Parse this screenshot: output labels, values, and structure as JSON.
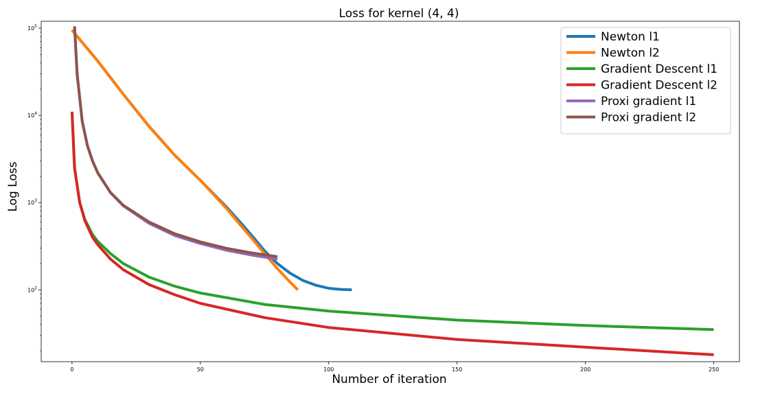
{
  "chart_data": {
    "type": "line",
    "title": "Loss for kernel (4, 4)",
    "xlabel": "Number of iteration",
    "ylabel": "Log Loss",
    "xlim": [
      -12,
      260
    ],
    "ylim": [
      15,
      120000
    ],
    "yscale": "log",
    "x_ticks": [
      0,
      50,
      100,
      150,
      200,
      250
    ],
    "x_tick_labels": [
      "0",
      "50",
      "100",
      "150",
      "200",
      "250"
    ],
    "y_ticks": [
      100,
      1000,
      10000,
      100000
    ],
    "y_tick_labels": [
      {
        "base": "10",
        "exp": "2"
      },
      {
        "base": "10",
        "exp": "3"
      },
      {
        "base": "10",
        "exp": "4"
      },
      {
        "base": "10",
        "exp": "5"
      }
    ],
    "grid": false,
    "legend_position": "top-right",
    "series": [
      {
        "name": "Newton l1",
        "color": "#1f77b4",
        "points": [
          [
            0,
            95000
          ],
          [
            10,
            42000
          ],
          [
            20,
            17500
          ],
          [
            30,
            7500
          ],
          [
            40,
            3500
          ],
          [
            50,
            1800
          ],
          [
            60,
            900
          ],
          [
            65,
            620
          ],
          [
            70,
            420
          ],
          [
            75,
            280
          ],
          [
            80,
            200
          ],
          [
            85,
            155
          ],
          [
            90,
            128
          ],
          [
            95,
            113
          ],
          [
            100,
            104
          ],
          [
            105,
            101
          ],
          [
            109,
            100
          ]
        ]
      },
      {
        "name": "Newton l2",
        "color": "#ff7f0e",
        "points": [
          [
            0,
            95000
          ],
          [
            10,
            42000
          ],
          [
            20,
            17500
          ],
          [
            30,
            7500
          ],
          [
            40,
            3500
          ],
          [
            50,
            1800
          ],
          [
            60,
            870
          ],
          [
            65,
            580
          ],
          [
            70,
            390
          ],
          [
            75,
            260
          ],
          [
            80,
            175
          ],
          [
            85,
            122
          ],
          [
            88,
            100
          ]
        ]
      },
      {
        "name": "Gradient Descent l1",
        "color": "#2ca02c",
        "points": [
          [
            0,
            11000
          ],
          [
            1,
            2500
          ],
          [
            3,
            1000
          ],
          [
            5,
            640
          ],
          [
            8,
            430
          ],
          [
            10,
            360
          ],
          [
            15,
            260
          ],
          [
            20,
            200
          ],
          [
            30,
            140
          ],
          [
            40,
            110
          ],
          [
            50,
            92
          ],
          [
            75,
            68
          ],
          [
            100,
            57
          ],
          [
            150,
            45
          ],
          [
            200,
            39
          ],
          [
            250,
            35
          ]
        ]
      },
      {
        "name": "Gradient Descent l2",
        "color": "#d62728",
        "points": [
          [
            0,
            11000
          ],
          [
            1,
            2500
          ],
          [
            3,
            1000
          ],
          [
            5,
            620
          ],
          [
            8,
            400
          ],
          [
            10,
            330
          ],
          [
            15,
            225
          ],
          [
            20,
            170
          ],
          [
            30,
            115
          ],
          [
            40,
            88
          ],
          [
            50,
            70
          ],
          [
            75,
            48
          ],
          [
            100,
            37
          ],
          [
            150,
            27
          ],
          [
            200,
            22
          ],
          [
            250,
            18
          ]
        ]
      },
      {
        "name": "Proxi gradient l1",
        "color": "#9467bd",
        "points": [
          [
            1,
            105000
          ],
          [
            2,
            30000
          ],
          [
            4,
            8500
          ],
          [
            6,
            4500
          ],
          [
            8,
            3000
          ],
          [
            10,
            2200
          ],
          [
            15,
            1300
          ],
          [
            20,
            920
          ],
          [
            30,
            580
          ],
          [
            40,
            420
          ],
          [
            50,
            340
          ],
          [
            60,
            285
          ],
          [
            70,
            250
          ],
          [
            80,
            225
          ]
        ]
      },
      {
        "name": "Proxi gradient l2",
        "color": "#8c564b",
        "points": [
          [
            1,
            105000
          ],
          [
            2,
            30000
          ],
          [
            4,
            8500
          ],
          [
            6,
            4500
          ],
          [
            8,
            3000
          ],
          [
            10,
            2200
          ],
          [
            15,
            1300
          ],
          [
            20,
            930
          ],
          [
            30,
            600
          ],
          [
            40,
            440
          ],
          [
            50,
            355
          ],
          [
            60,
            300
          ],
          [
            70,
            265
          ],
          [
            80,
            240
          ]
        ]
      }
    ]
  }
}
